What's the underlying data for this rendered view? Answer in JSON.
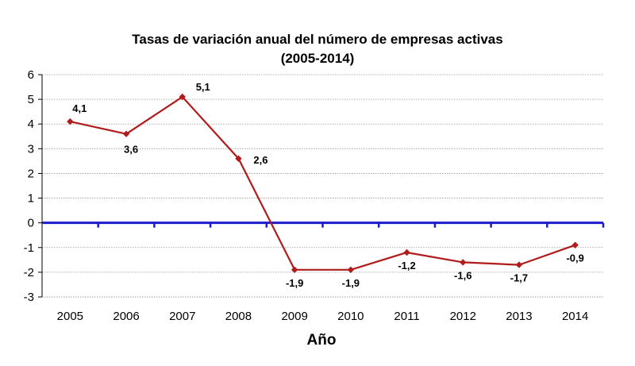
{
  "chart_data": {
    "type": "line",
    "title_lines": [
      "Tasas de variación anual del número de empresas activas",
      "(2005-2014)"
    ],
    "xlabel": "Año",
    "ylabel": "",
    "categories": [
      "2005",
      "2006",
      "2007",
      "2008",
      "2009",
      "2010",
      "2011",
      "2012",
      "2013",
      "2014"
    ],
    "y_ticks": [
      "6",
      "5",
      "4",
      "3",
      "2",
      "1",
      "0",
      "-1",
      "-2",
      "-3"
    ],
    "ylim": [
      -3,
      6
    ],
    "grid": true,
    "legend": "none",
    "series": [
      {
        "values": [
          4.1,
          3.6,
          5.1,
          2.6,
          -1.9,
          -1.9,
          -1.2,
          -1.6,
          -1.7,
          -0.9
        ],
        "data_labels": [
          "4,1",
          "3,6",
          "5,1",
          "2,6",
          "-1,9",
          "-1,9",
          "-1,2",
          "-1,6",
          "-1,7",
          "-0,9"
        ],
        "color": "#b01c1c"
      }
    ],
    "zero_line_color": "#1c1ccc",
    "grid_color": "#9a9a9a"
  }
}
